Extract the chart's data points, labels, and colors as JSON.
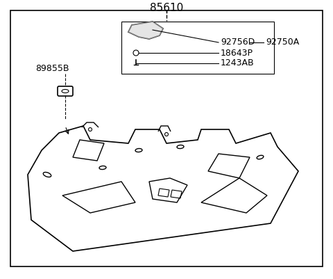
{
  "title": "85610",
  "background_color": "#ffffff",
  "border_color": "#000000",
  "text_color": "#000000",
  "labels": {
    "main": "85610",
    "part1": "89855B",
    "part2": "92750A",
    "part3": "92756D",
    "part4": "18643P",
    "part5": "1243AB"
  },
  "figsize": [
    4.8,
    4.01
  ],
  "dpi": 100
}
